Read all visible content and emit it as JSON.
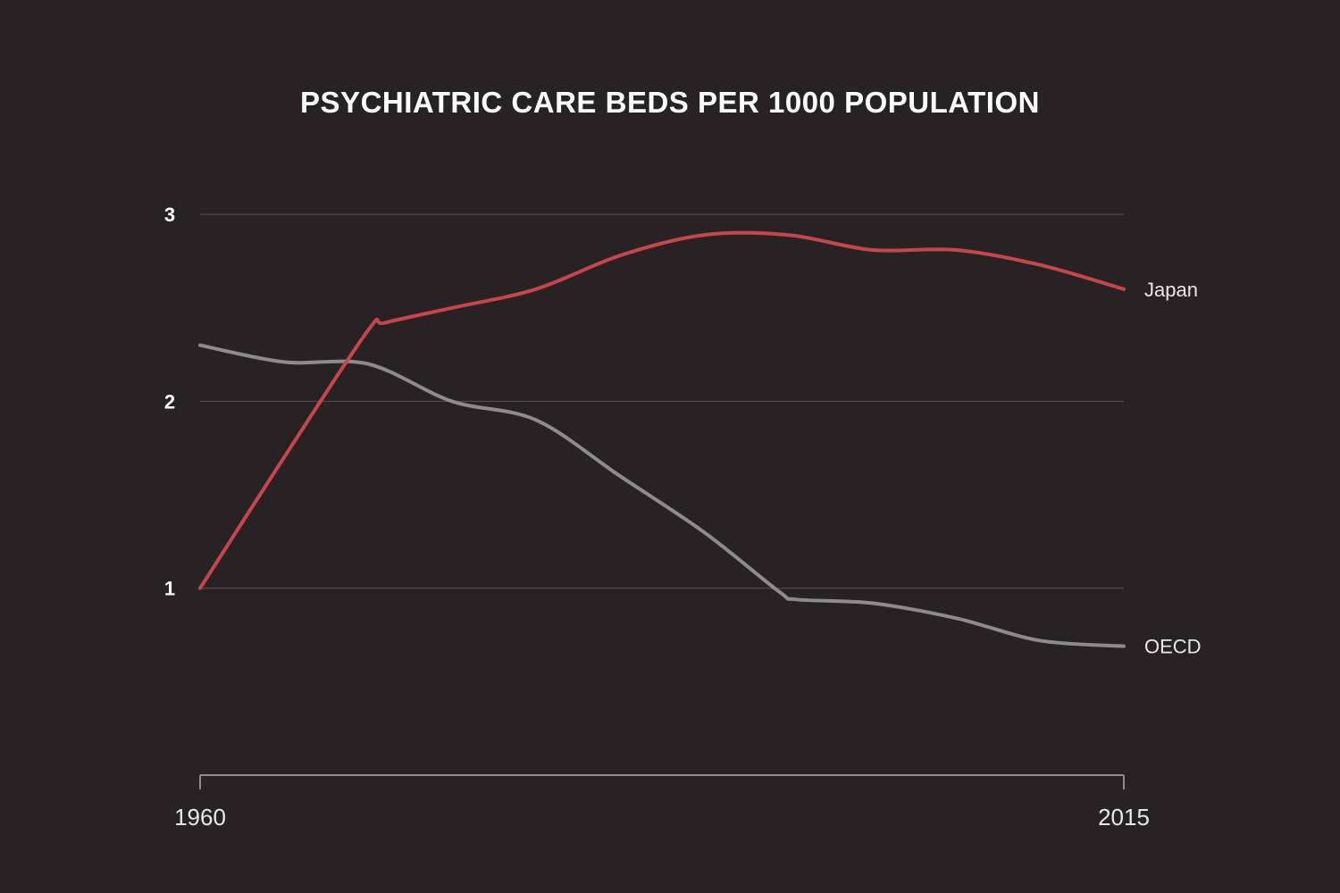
{
  "chart_data": {
    "type": "line",
    "title": "PSYCHIATRIC CARE BEDS PER 1000 POPULATION",
    "xlabel": "",
    "ylabel": "",
    "xlim": [
      1960,
      2015
    ],
    "ylim": [
      0,
      3
    ],
    "x_tick_labels": [
      "1960",
      "2015"
    ],
    "y_ticks": [
      1,
      2,
      3
    ],
    "y_tick_labels": [
      "1",
      "2",
      "3"
    ],
    "grid": true,
    "legend": "end-of-line labels",
    "series": [
      {
        "name": "Japan",
        "color": "#c9454b",
        "x": [
          1960,
          1965,
          1970,
          1971,
          1975,
          1980,
          1985,
          1990,
          1995,
          2000,
          2005,
          2010,
          2015
        ],
        "y": [
          1.0,
          1.7,
          2.38,
          2.42,
          2.5,
          2.6,
          2.78,
          2.89,
          2.89,
          2.81,
          2.81,
          2.73,
          2.6
        ]
      },
      {
        "name": "OECD",
        "color": "#8d8b8b",
        "x": [
          1960,
          1965,
          1970,
          1975,
          1980,
          1985,
          1990,
          1994.5,
          1995.5,
          2000,
          2005,
          2010,
          2015
        ],
        "y": [
          2.3,
          2.21,
          2.2,
          2.0,
          1.9,
          1.6,
          1.3,
          0.98,
          0.94,
          0.92,
          0.84,
          0.72,
          0.69
        ]
      }
    ]
  }
}
